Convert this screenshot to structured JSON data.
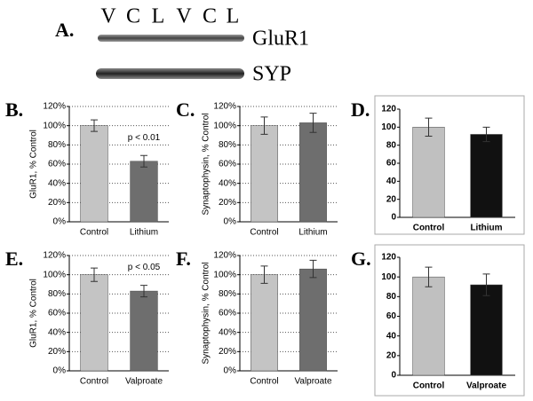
{
  "blot": {
    "label": "A.",
    "lanes": [
      "V",
      "C",
      "L",
      "V",
      "C",
      "L"
    ],
    "bands": [
      "GluR1",
      "SYP"
    ]
  },
  "chart_data": [
    {
      "type": "bar",
      "label": "B.",
      "ylabel": "GluR1, % Control",
      "categories": [
        "Control",
        "Lithium"
      ],
      "values": [
        100,
        63
      ],
      "errors": [
        6,
        6
      ],
      "colors": [
        "#c4c4c4",
        "#6e6e6e"
      ],
      "ylim": [
        0,
        120
      ],
      "yticks": [
        {
          "value": 0,
          "label": "0%"
        },
        {
          "value": 20,
          "label": "20%"
        },
        {
          "value": 40,
          "label": "40%"
        },
        {
          "value": 60,
          "label": "60%"
        },
        {
          "value": 80,
          "label": "80%"
        },
        {
          "value": 100,
          "label": "100%"
        },
        {
          "value": 120,
          "label": "120%"
        }
      ],
      "grid": true,
      "annotation": "p < 0.01"
    },
    {
      "type": "bar",
      "label": "C.",
      "ylabel": "Synaptophysin, % Control",
      "categories": [
        "Control",
        "Lithium"
      ],
      "values": [
        100,
        103
      ],
      "errors": [
        9,
        10
      ],
      "colors": [
        "#c4c4c4",
        "#6e6e6e"
      ],
      "ylim": [
        0,
        120
      ],
      "yticks": [
        {
          "value": 0,
          "label": "0%"
        },
        {
          "value": 20,
          "label": "20%"
        },
        {
          "value": 40,
          "label": "40%"
        },
        {
          "value": 60,
          "label": "60%"
        },
        {
          "value": 80,
          "label": "80%"
        },
        {
          "value": 100,
          "label": "100%"
        },
        {
          "value": 120,
          "label": "120%"
        }
      ],
      "grid": true
    },
    {
      "type": "bar",
      "label": "D.",
      "categories": [
        "Control",
        "Lithium"
      ],
      "values": [
        100,
        92
      ],
      "errors": [
        10,
        8
      ],
      "colors": [
        "#c0c0c0",
        "#111111"
      ],
      "ylim": [
        0,
        120
      ],
      "yticks": [
        0,
        20,
        40,
        60,
        80,
        100,
        120
      ],
      "grid": false
    },
    {
      "type": "bar",
      "label": "E.",
      "ylabel": "GluR1, % Control",
      "categories": [
        "Control",
        "Valproate"
      ],
      "values": [
        100,
        83
      ],
      "errors": [
        7,
        6
      ],
      "colors": [
        "#c4c4c4",
        "#6e6e6e"
      ],
      "ylim": [
        0,
        120
      ],
      "yticks": [
        {
          "value": 0,
          "label": "0%"
        },
        {
          "value": 20,
          "label": "20%"
        },
        {
          "value": 40,
          "label": "40%"
        },
        {
          "value": 60,
          "label": "60%"
        },
        {
          "value": 80,
          "label": "80%"
        },
        {
          "value": 100,
          "label": "100%"
        },
        {
          "value": 120,
          "label": "120%"
        }
      ],
      "grid": true,
      "annotation": "p < 0.05"
    },
    {
      "type": "bar",
      "label": "F.",
      "ylabel": "Synaptophysin, % Control",
      "categories": [
        "Control",
        "Valproate"
      ],
      "values": [
        100,
        106
      ],
      "errors": [
        9,
        9
      ],
      "colors": [
        "#c4c4c4",
        "#6e6e6e"
      ],
      "ylim": [
        0,
        120
      ],
      "yticks": [
        {
          "value": 0,
          "label": "0%"
        },
        {
          "value": 20,
          "label": "20%"
        },
        {
          "value": 40,
          "label": "40%"
        },
        {
          "value": 60,
          "label": "60%"
        },
        {
          "value": 80,
          "label": "80%"
        },
        {
          "value": 100,
          "label": "100%"
        },
        {
          "value": 120,
          "label": "120%"
        }
      ],
      "grid": true
    },
    {
      "type": "bar",
      "label": "G.",
      "categories": [
        "Control",
        "Valproate"
      ],
      "values": [
        100,
        92
      ],
      "errors": [
        10,
        11
      ],
      "colors": [
        "#c0c0c0",
        "#111111"
      ],
      "ylim": [
        0,
        120
      ],
      "yticks": [
        0,
        20,
        40,
        60,
        80,
        100,
        120
      ],
      "grid": false
    }
  ]
}
